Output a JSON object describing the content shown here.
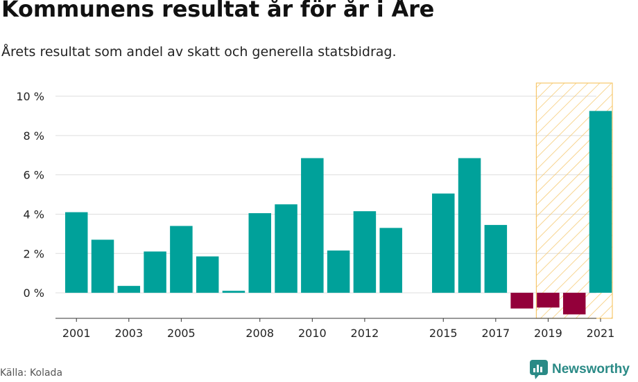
{
  "title": "Kommunens resultat år för år i Åre",
  "subtitle": "Årets resultat som andel av skatt och generella statsbidrag.",
  "source": "Källa: Kolada",
  "brand": {
    "name": "Newsworthy",
    "icon": "newsworthy-logo-icon"
  },
  "colors": {
    "positive": "#00a19a",
    "negative": "#93003a",
    "highlight_stroke": "#f6c76b",
    "grid": "#dddddd"
  },
  "chart_data": {
    "type": "bar",
    "x": [
      2001,
      2002,
      2003,
      2004,
      2005,
      2006,
      2007,
      2008,
      2009,
      2010,
      2011,
      2012,
      2013,
      2015,
      2016,
      2017,
      2018,
      2019,
      2020,
      2021
    ],
    "values": [
      4.1,
      2.7,
      0.35,
      2.1,
      3.4,
      1.85,
      0.1,
      4.05,
      4.5,
      6.85,
      2.15,
      4.15,
      3.3,
      5.05,
      6.85,
      3.45,
      -0.8,
      -0.75,
      -1.1,
      9.25
    ],
    "xticks": [
      2001,
      2003,
      2005,
      2008,
      2010,
      2012,
      2015,
      2017,
      2019,
      2021
    ],
    "yticks": [
      0,
      2,
      4,
      6,
      8,
      10
    ],
    "ytick_labels": [
      "0 %",
      "2 %",
      "4 %",
      "6 %",
      "8 %",
      "10 %"
    ],
    "ylim": [
      -1.3,
      10.6
    ],
    "xlim": [
      2000.2,
      2021.9
    ],
    "highlight_range": [
      2018.55,
      2021.45
    ],
    "grid": true,
    "legend": "none"
  }
}
